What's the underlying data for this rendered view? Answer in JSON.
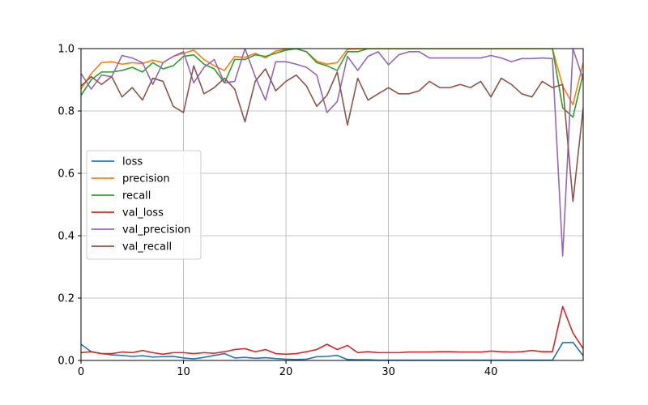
{
  "chart_data": {
    "type": "line",
    "xlim": [
      0,
      49
    ],
    "ylim": [
      0,
      1.0
    ],
    "xticks": [
      0,
      10,
      20,
      30,
      40
    ],
    "yticks": [
      0.0,
      0.2,
      0.4,
      0.6,
      0.8,
      1.0
    ],
    "xtick_labels": [
      "0",
      "10",
      "20",
      "30",
      "40"
    ],
    "ytick_labels": [
      "0.0",
      "0.2",
      "0.4",
      "0.6",
      "0.8",
      "1.0"
    ],
    "grid": true,
    "legend_position": "center-left",
    "x": [
      0,
      1,
      2,
      3,
      4,
      5,
      6,
      7,
      8,
      9,
      10,
      11,
      12,
      13,
      14,
      15,
      16,
      17,
      18,
      19,
      20,
      21,
      22,
      23,
      24,
      25,
      26,
      27,
      28,
      29,
      30,
      31,
      32,
      33,
      34,
      35,
      36,
      37,
      38,
      39,
      40,
      41,
      42,
      43,
      44,
      45,
      46,
      47,
      48,
      49
    ],
    "series": [
      {
        "name": "loss",
        "color": "#1f77b4",
        "values": [
          0.052,
          0.028,
          0.022,
          0.018,
          0.016,
          0.013,
          0.015,
          0.011,
          0.012,
          0.013,
          0.008,
          0.005,
          0.01,
          0.016,
          0.022,
          0.008,
          0.01,
          0.007,
          0.009,
          0.006,
          0.004,
          0.003,
          0.004,
          0.012,
          0.013,
          0.016,
          0.003,
          0.002,
          0.002,
          0.001,
          0.001,
          0.001,
          0.001,
          0.001,
          0.001,
          0.001,
          0.001,
          0.001,
          0.001,
          0.001,
          0.001,
          0.001,
          0.001,
          0.001,
          0.001,
          0.001,
          0.001,
          0.057,
          0.058,
          0.015
        ]
      },
      {
        "name": "precision",
        "color": "#ff7f0e",
        "values": [
          0.87,
          0.92,
          0.955,
          0.958,
          0.95,
          0.955,
          0.952,
          0.963,
          0.955,
          0.975,
          0.985,
          0.995,
          0.965,
          0.945,
          0.93,
          0.975,
          0.972,
          0.985,
          0.97,
          0.992,
          0.998,
          0.999,
          0.99,
          0.96,
          0.95,
          0.955,
          0.998,
          0.999,
          1.0,
          1.0,
          1.0,
          1.0,
          1.0,
          1.0,
          1.0,
          1.0,
          1.0,
          1.0,
          1.0,
          1.0,
          1.0,
          1.0,
          1.0,
          1.0,
          1.0,
          1.0,
          1.0,
          0.88,
          0.82,
          0.955
        ]
      },
      {
        "name": "recall",
        "color": "#2ca02c",
        "values": [
          0.85,
          0.9,
          0.925,
          0.925,
          0.93,
          0.94,
          0.925,
          0.955,
          0.935,
          0.945,
          0.975,
          0.98,
          0.95,
          0.935,
          0.89,
          0.965,
          0.965,
          0.98,
          0.975,
          0.985,
          0.995,
          1.0,
          0.99,
          0.955,
          0.945,
          0.93,
          0.99,
          0.99,
          1.0,
          1.0,
          1.0,
          1.0,
          1.0,
          1.0,
          1.0,
          1.0,
          1.0,
          1.0,
          1.0,
          1.0,
          1.0,
          1.0,
          1.0,
          1.0,
          1.0,
          1.0,
          1.0,
          0.81,
          0.78,
          0.92
        ]
      },
      {
        "name": "val_loss",
        "color": "#d62728",
        "values": [
          0.025,
          0.028,
          0.022,
          0.022,
          0.027,
          0.025,
          0.032,
          0.025,
          0.02,
          0.025,
          0.025,
          0.022,
          0.025,
          0.023,
          0.028,
          0.035,
          0.038,
          0.028,
          0.035,
          0.022,
          0.02,
          0.022,
          0.028,
          0.035,
          0.052,
          0.035,
          0.048,
          0.025,
          0.028,
          0.025,
          0.025,
          0.025,
          0.027,
          0.027,
          0.027,
          0.028,
          0.028,
          0.027,
          0.027,
          0.027,
          0.03,
          0.028,
          0.027,
          0.028,
          0.032,
          0.028,
          0.028,
          0.173,
          0.088,
          0.038
        ]
      },
      {
        "name": "val_precision",
        "color": "#9467bd",
        "values": [
          0.92,
          0.87,
          0.915,
          0.91,
          0.978,
          0.97,
          0.955,
          0.885,
          0.955,
          0.975,
          0.99,
          0.89,
          0.94,
          0.965,
          0.89,
          0.895,
          1.0,
          0.91,
          0.835,
          0.958,
          0.958,
          0.95,
          0.94,
          0.915,
          0.795,
          0.83,
          0.975,
          0.93,
          0.975,
          0.99,
          0.948,
          0.98,
          0.99,
          0.99,
          0.97,
          0.97,
          0.97,
          0.97,
          0.97,
          0.97,
          0.978,
          0.97,
          0.958,
          0.968,
          0.968,
          0.97,
          0.968,
          0.335,
          1.0,
          0.9
        ]
      },
      {
        "name": "val_recall",
        "color": "#8c564b",
        "values": [
          0.88,
          0.91,
          0.885,
          0.91,
          0.845,
          0.875,
          0.835,
          0.905,
          0.895,
          0.815,
          0.795,
          0.945,
          0.855,
          0.875,
          0.905,
          0.87,
          0.765,
          0.895,
          0.935,
          0.865,
          0.895,
          0.915,
          0.88,
          0.815,
          0.85,
          0.925,
          0.755,
          0.905,
          0.835,
          0.855,
          0.875,
          0.855,
          0.855,
          0.865,
          0.895,
          0.875,
          0.875,
          0.885,
          0.875,
          0.895,
          0.845,
          0.905,
          0.885,
          0.855,
          0.845,
          0.895,
          0.875,
          0.885,
          0.51,
          0.81
        ]
      }
    ]
  }
}
